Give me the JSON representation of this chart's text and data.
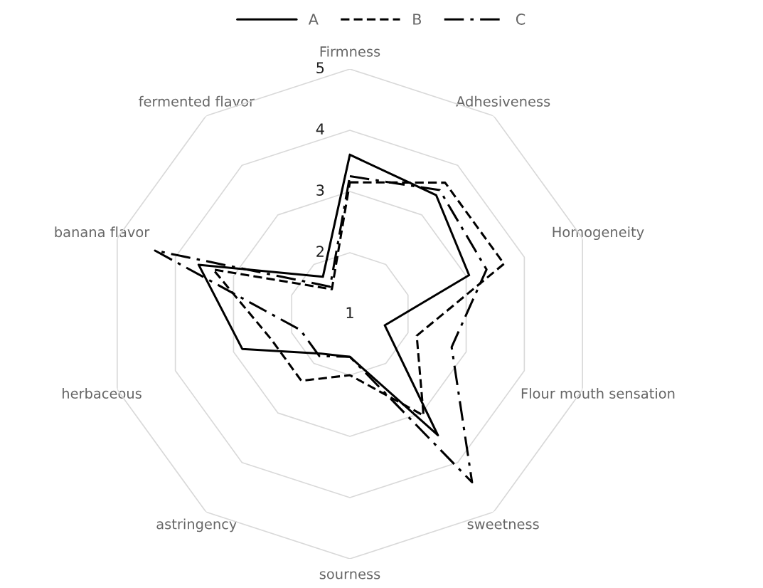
{
  "chart_data": {
    "type": "radar",
    "categories": [
      "Firmness",
      "Adhesiveness",
      "Homogeneity",
      "Flour mouth sensation",
      "sweetness",
      "sourness",
      "astringency",
      "herbaceous",
      "banana flavor",
      "fermented flavor"
    ],
    "series": [
      {
        "name": "A",
        "color": "#000000",
        "line_style": "solid",
        "values": [
          3.6,
          3.4,
          3.05,
          1.6,
          3.45,
          1.7,
          1.8,
          2.85,
          3.6,
          1.75
        ]
      },
      {
        "name": "B",
        "color": "#000000",
        "line_style": "dashed",
        "values": [
          3.15,
          3.65,
          3.65,
          2.15,
          3.05,
          2.0,
          2.35,
          2.35,
          3.35,
          1.5
        ]
      },
      {
        "name": "C",
        "color": "#000000",
        "line_style": "dashdot",
        "values": [
          3.25,
          3.5,
          3.35,
          2.75,
          4.4,
          1.7,
          1.85,
          1.85,
          4.35,
          1.55
        ]
      }
    ],
    "ylim": [
      1,
      5
    ],
    "yticks": [
      1,
      2,
      3,
      4,
      5
    ],
    "grid": true,
    "legend": "top"
  }
}
